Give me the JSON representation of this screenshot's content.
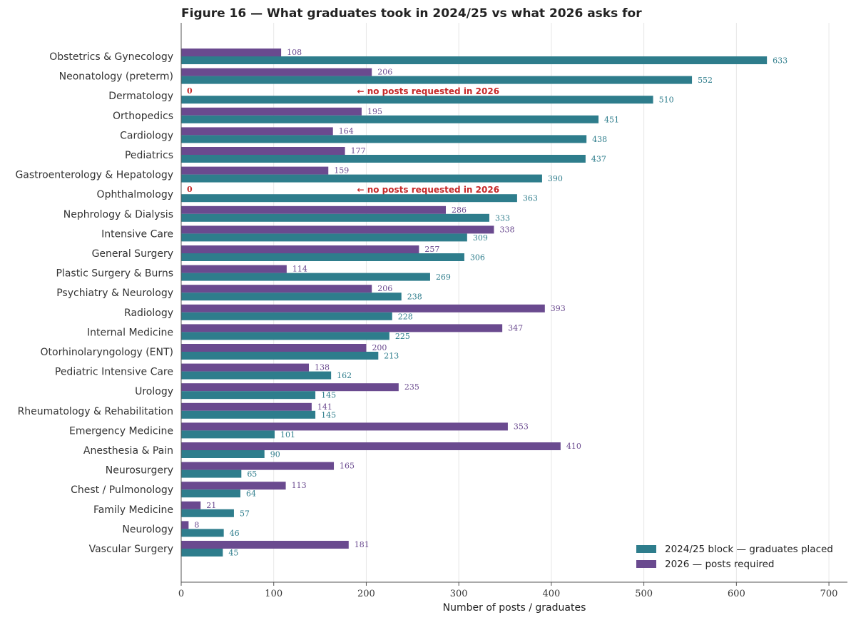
{
  "chart_data": {
    "type": "bar",
    "orientation": "horizontal",
    "title": "Figure 16 — What graduates took in 2024/25 vs what 2026 asks for",
    "xlabel": "Number of posts / graduates",
    "xlim": [
      0,
      720
    ],
    "xticks": [
      0,
      100,
      200,
      300,
      400,
      500,
      600,
      700
    ],
    "grid": "vertical",
    "legend_position": "bottom-right",
    "categories": [
      "Obstetrics & Gynecology",
      "Neonatology (preterm)",
      "Dermatology",
      "Orthopedics",
      "Cardiology",
      "Pediatrics",
      "Gastroenterology & Hepatology",
      "Ophthalmology",
      "Nephrology & Dialysis",
      "Intensive Care",
      "General Surgery",
      "Plastic Surgery & Burns",
      "Psychiatry & Neurology",
      "Radiology",
      "Internal Medicine",
      "Otorhinolaryngology (ENT)",
      "Pediatric Intensive Care",
      "Urology",
      "Rheumatology & Rehabilitation",
      "Emergency Medicine",
      "Anesthesia & Pain",
      "Neurosurgery",
      "Chest / Pulmonology",
      "Family Medicine",
      "Neurology",
      "Vascular Surgery"
    ],
    "series": [
      {
        "name": "2024/25 block — graduates placed",
        "color": "#2e7d8c",
        "values": [
          633,
          552,
          510,
          451,
          438,
          437,
          390,
          363,
          333,
          309,
          306,
          269,
          238,
          228,
          225,
          213,
          162,
          145,
          145,
          101,
          90,
          65,
          64,
          57,
          46,
          45
        ]
      },
      {
        "name": "2026 — posts required",
        "color": "#6a4a8f",
        "values": [
          108,
          206,
          0,
          195,
          164,
          177,
          159,
          0,
          286,
          338,
          257,
          114,
          206,
          393,
          347,
          200,
          138,
          235,
          141,
          353,
          410,
          165,
          113,
          21,
          8,
          181
        ]
      }
    ],
    "zero_label": "0",
    "zero_label_color": "#c62828",
    "annotation_text": "← no posts requested in 2026",
    "annotation_x": 190
  }
}
